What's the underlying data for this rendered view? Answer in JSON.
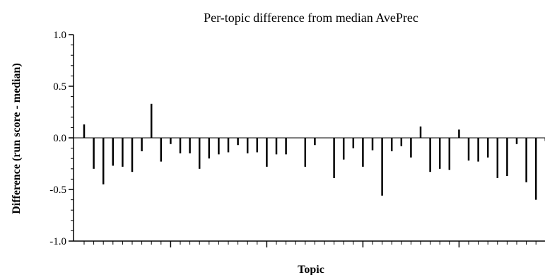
{
  "chart_data": {
    "type": "bar",
    "title": "Per-topic difference from median AvePrec",
    "xlabel": "Topic",
    "ylabel": "Difference (run score - median)",
    "ylim": [
      -1.0,
      1.0
    ],
    "yticks": [
      "1.0",
      "0.5",
      "0.0",
      "-0.5",
      "-1.0"
    ],
    "ytick_values": [
      1.0,
      0.5,
      0.0,
      -0.5,
      -1.0
    ],
    "grid": false,
    "legend": "none",
    "bar_color": "#000000",
    "x": [
      1,
      2,
      3,
      4,
      5,
      6,
      7,
      8,
      9,
      10,
      11,
      12,
      13,
      14,
      15,
      16,
      17,
      18,
      19,
      20,
      21,
      22,
      23,
      24,
      25,
      26,
      27,
      28,
      29,
      30,
      31,
      32,
      33,
      34,
      35,
      36,
      37,
      38,
      39,
      40,
      41,
      42,
      43,
      44,
      45,
      46,
      47,
      48,
      49,
      50
    ],
    "values": [
      0.13,
      -0.3,
      -0.45,
      -0.27,
      -0.28,
      -0.33,
      -0.13,
      0.33,
      -0.23,
      -0.06,
      -0.15,
      -0.15,
      -0.3,
      -0.2,
      -0.16,
      -0.14,
      -0.07,
      -0.15,
      -0.14,
      -0.28,
      -0.16,
      -0.16,
      0.0,
      -0.28,
      -0.07,
      0.0,
      -0.39,
      -0.21,
      -0.1,
      -0.28,
      -0.12,
      -0.56,
      -0.13,
      -0.08,
      -0.19,
      0.11,
      -0.33,
      -0.3,
      -0.31,
      0.08,
      -0.22,
      -0.23,
      -0.19,
      -0.39,
      -0.37,
      -0.06,
      -0.43,
      -0.6,
      -0.03,
      0.0
    ]
  }
}
